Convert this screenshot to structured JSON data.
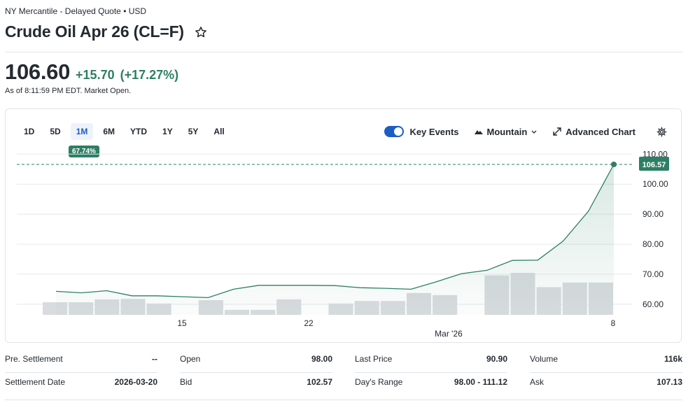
{
  "header": {
    "exchange": "NY Mercantile - Delayed Quote • USD",
    "title": "Crude Oil Apr 26 (CL=F)",
    "price": "106.60",
    "change": "+15.70",
    "change_pct": "(+17.27%)",
    "as_of": "As of 8:11:59 PM EDT. Market Open."
  },
  "ranges": [
    "1D",
    "5D",
    "1M",
    "6M",
    "YTD",
    "1Y",
    "5Y",
    "All"
  ],
  "active_range": "1M",
  "period_change_tag": "67.74%",
  "toolbar": {
    "key_events": "Key Events",
    "chart_type": "Mountain",
    "advanced": "Advanced Chart"
  },
  "colors": {
    "up": "#2d7f63",
    "accent": "#1a5ec4",
    "volume": "#d9dcdf"
  },
  "chart_data": {
    "type": "area",
    "x_tick_labels": [
      "15",
      "22",
      "Mar '26",
      "8"
    ],
    "y_ticks": [
      60,
      70,
      80,
      90,
      100,
      110
    ],
    "ylim": [
      56,
      111
    ],
    "last_label": "106.57",
    "series": [
      {
        "values": [
          64.3,
          63.8,
          64.5,
          62.8,
          62.8,
          62.5,
          62.2,
          65.0,
          66.3,
          66.3,
          66.3,
          66.2,
          65.5,
          65.3,
          65.0,
          67.5,
          70.2,
          71.3,
          74.6,
          74.7,
          81.0,
          91.0,
          106.57
        ]
      }
    ],
    "volume_bars": [
      0.3,
      0.3,
      0.37,
      0.38,
      0.27,
      0.0,
      0.35,
      0.12,
      0.12,
      0.37,
      0.0,
      0.27,
      0.33,
      0.33,
      0.52,
      0.47,
      0.0,
      0.94,
      1.0,
      0.66,
      0.77,
      0.77
    ]
  },
  "stats": [
    [
      {
        "label": "Pre. Settlement",
        "value": "--"
      },
      {
        "label": "Settlement Date",
        "value": "2026-03-20"
      }
    ],
    [
      {
        "label": "Open",
        "value": "98.00"
      },
      {
        "label": "Bid",
        "value": "102.57"
      }
    ],
    [
      {
        "label": "Last Price",
        "value": "90.90"
      },
      {
        "label": "Day's Range",
        "value": "98.00 - 111.12"
      }
    ],
    [
      {
        "label": "Volume",
        "value": "116k"
      },
      {
        "label": "Ask",
        "value": "107.13"
      }
    ]
  ]
}
